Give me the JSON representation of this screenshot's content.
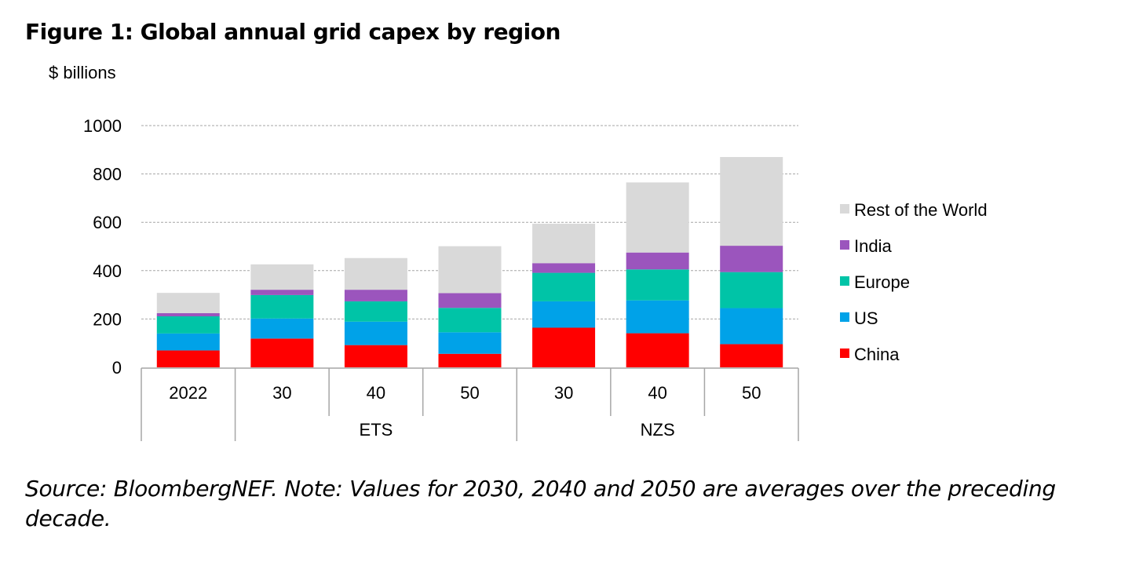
{
  "chart_data": {
    "type": "bar",
    "stacked": true,
    "title": "Figure 1: Global annual grid capex by region",
    "ylabel": "$ billions",
    "xlabel": "",
    "ylim": [
      0,
      1000
    ],
    "yticks": [
      0,
      200,
      400,
      600,
      800,
      1000
    ],
    "grid": true,
    "legend_position": "right",
    "categories": [
      "2022",
      "30",
      "40",
      "50",
      "30",
      "40",
      "50"
    ],
    "groups": [
      {
        "label": "ETS",
        "from": 1,
        "to": 3
      },
      {
        "label": "NZS",
        "from": 4,
        "to": 6
      }
    ],
    "series": [
      {
        "name": "China",
        "color": "#ff0000",
        "values": [
          70,
          119,
          92,
          56,
          164,
          141,
          96
        ]
      },
      {
        "name": "US",
        "color": "#00a2e8",
        "values": [
          70,
          83,
          97,
          89,
          109,
          136,
          149
        ]
      },
      {
        "name": "Europe",
        "color": "#00c4a7",
        "values": [
          71,
          97,
          84,
          101,
          118,
          128,
          149
        ]
      },
      {
        "name": "India",
        "color": "#9b55bd",
        "values": [
          13,
          22,
          48,
          61,
          40,
          70,
          109
        ]
      },
      {
        "name": "Rest of the World",
        "color": "#d9d9d9",
        "values": [
          84,
          105,
          131,
          194,
          163,
          290,
          367
        ]
      }
    ]
  },
  "note": "Source: BloombergNEF. Note: Values for 2030, 2040 and 2050 are averages over the preceding decade."
}
